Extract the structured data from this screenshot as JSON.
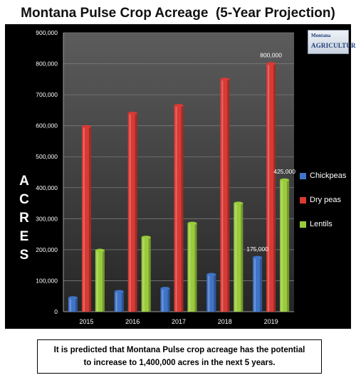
{
  "title": "Montana Pulse Crop Acreage  (5-Year Projection)",
  "ylabel_letters": [
    "A",
    "C",
    "R",
    "E",
    "S"
  ],
  "logo": {
    "top": "Montana",
    "bottom": "AGRICULTURE"
  },
  "note": "It is predicted that Montana Pulse crop acreage has the potential to increase to 1,400,000 acres in the next 5 years.",
  "colors": {
    "Chickpeas": "#3f74c8",
    "Dry peas": "#d93a34",
    "Lentils": "#9acb3c"
  },
  "chart_data": {
    "type": "bar",
    "title": "Montana Pulse Crop Acreage  (5-Year Projection)",
    "ylabel": "ACRES",
    "categories": [
      "2015",
      "2016",
      "2017",
      "2018",
      "2019"
    ],
    "series": [
      {
        "name": "Chickpeas",
        "values": [
          45000,
          65000,
          75000,
          120000,
          175000
        ]
      },
      {
        "name": "Dry peas",
        "values": [
          597000,
          640000,
          665000,
          750000,
          800000
        ]
      },
      {
        "name": "Lentils",
        "values": [
          198000,
          240000,
          285000,
          350000,
          425000
        ]
      }
    ],
    "ylim": [
      0,
      900000
    ],
    "yticks": [
      "0",
      "100,000",
      "200,000",
      "300,000",
      "400,000",
      "500,000",
      "600,000",
      "700,000",
      "800,000",
      "900,000"
    ],
    "data_labels": [
      {
        "series": "Dry peas",
        "category": "2019",
        "text": "800,000"
      },
      {
        "series": "Lentils",
        "category": "2019",
        "text": "425,000"
      },
      {
        "series": "Chickpeas",
        "category": "2019",
        "text": "175,000"
      }
    ],
    "legend_position": "right",
    "grid": true
  }
}
